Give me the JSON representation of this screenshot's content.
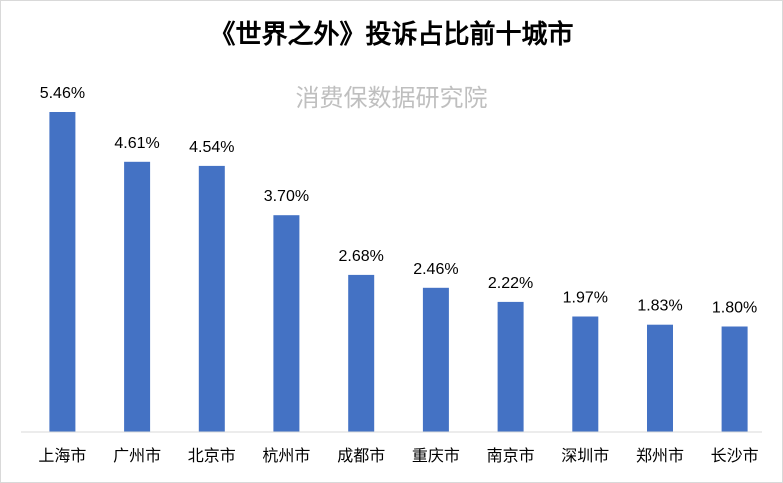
{
  "chart_data": {
    "type": "bar",
    "title": "《世界之外》投诉占比前十城市",
    "watermark": "消费保数据研究院",
    "categories": [
      "上海市",
      "广州市",
      "北京市",
      "杭州市",
      "成都市",
      "重庆市",
      "南京市",
      "深圳市",
      "郑州市",
      "长沙市"
    ],
    "values": [
      5.46,
      4.61,
      4.54,
      3.7,
      2.68,
      2.46,
      2.22,
      1.97,
      1.83,
      1.8
    ],
    "value_labels": [
      "5.46%",
      "4.61%",
      "4.54%",
      "3.70%",
      "2.68%",
      "2.46%",
      "2.22%",
      "1.97%",
      "1.83%",
      "1.80%"
    ],
    "ylim": [
      0,
      5.46
    ],
    "grid": false,
    "bar_color": "#4472c4"
  }
}
